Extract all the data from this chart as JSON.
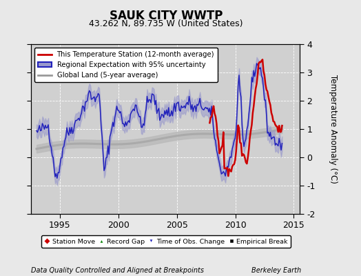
{
  "title": "SAUK CITY WWTP",
  "subtitle": "43.262 N, 89.735 W (United States)",
  "xlabel_left": "Data Quality Controlled and Aligned at Breakpoints",
  "xlabel_right": "Berkeley Earth",
  "ylabel": "Temperature Anomaly (°C)",
  "xlim": [
    1992.5,
    2015.5
  ],
  "ylim": [
    -2,
    4
  ],
  "yticks": [
    -2,
    -1,
    0,
    1,
    2,
    3,
    4
  ],
  "xticks": [
    1995,
    2000,
    2005,
    2010,
    2015
  ],
  "background_color": "#e8e8e8",
  "plot_bg_color": "#d0d0d0",
  "title_fontsize": 12,
  "subtitle_fontsize": 9,
  "legend_entries": [
    "This Temperature Station (12-month average)",
    "Regional Expectation with 95% uncertainty",
    "Global Land (5-year average)"
  ],
  "legend_colors": [
    "#cc0000",
    "#2222bb",
    "#999999"
  ],
  "station_line_color": "#cc0000",
  "regional_line_color": "#2222bb",
  "regional_fill_color": "#9999cc",
  "global_line_color": "#aaaaaa",
  "global_fill_color": "#c8c8c8"
}
